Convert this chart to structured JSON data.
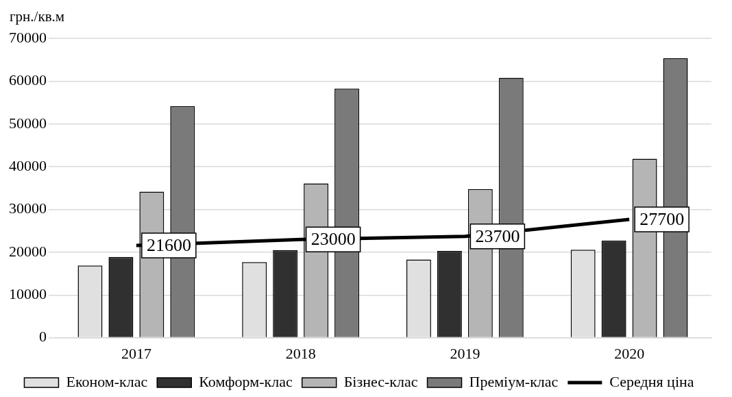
{
  "chart_data": {
    "type": "bar",
    "ylabel": "грн./кв.м",
    "categories": [
      "2017",
      "2018",
      "2019",
      "2020"
    ],
    "series": [
      {
        "name": "Економ-клас",
        "color": "#e0e0e0",
        "values": [
          16900,
          17700,
          18300,
          20600
        ]
      },
      {
        "name": "Комформ-клас",
        "color": "#303030",
        "values": [
          18900,
          20500,
          20300,
          22700
        ]
      },
      {
        "name": "Бізнес-клас",
        "color": "#b5b5b5",
        "values": [
          34200,
          36100,
          34800,
          41900
        ]
      },
      {
        "name": "Преміум-клас",
        "color": "#7a7a7a",
        "values": [
          54200,
          58300,
          60800,
          65400
        ]
      },
      {
        "name": "Середня ціна",
        "type": "line",
        "color": "#000000",
        "values": [
          21600,
          23000,
          23700,
          27700
        ],
        "value_labels": [
          "21600",
          "23000",
          "23700",
          "27700"
        ]
      }
    ],
    "ylim": [
      0,
      70000
    ],
    "yticks": [
      0,
      10000,
      20000,
      30000,
      40000,
      50000,
      60000,
      70000
    ],
    "grid": "y",
    "legend": "bottom",
    "marker": "none"
  }
}
